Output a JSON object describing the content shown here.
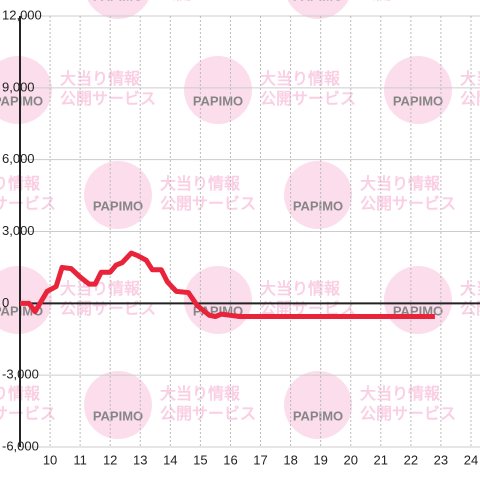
{
  "chart_data": {
    "type": "line",
    "watermark": [
      "大当り情報",
      "公開サービス",
      "PAPIMO"
    ],
    "x": [
      9,
      9.3,
      9.5,
      9.9,
      10.2,
      10.4,
      10.7,
      11.0,
      11.3,
      11.5,
      11.7,
      12.0,
      12.2,
      12.4,
      12.7,
      12.9,
      13.2,
      13.4,
      13.7,
      13.9,
      14.2,
      14.6,
      14.9,
      15.3,
      15.5,
      15.7,
      16.0,
      16.3,
      22.8
    ],
    "series": [
      {
        "color": "#e8233a",
        "values": [
          0,
          0,
          -350,
          500,
          700,
          1500,
          1450,
          1100,
          800,
          800,
          1300,
          1300,
          1600,
          1700,
          2100,
          2000,
          1800,
          1400,
          1400,
          900,
          500,
          450,
          -100,
          -500,
          -550,
          -450,
          -500,
          -550,
          -550
        ]
      }
    ],
    "xlim": [
      9,
      24.3
    ],
    "xticks": [
      10,
      11,
      12,
      13,
      14,
      15,
      16,
      17,
      18,
      19,
      20,
      21,
      22,
      23,
      24
    ],
    "ylim": [
      -6000,
      12000
    ],
    "yticks": [
      {
        "value": -6000,
        "label": "-6,000"
      },
      {
        "value": -3000,
        "label": "-3,000"
      },
      0,
      {
        "value": 3000,
        "label": "3,000"
      },
      {
        "value": 6000,
        "label": "6,000"
      },
      {
        "value": 9000,
        "label": "9,000"
      },
      {
        "value": 12000,
        "label": "12,000"
      }
    ],
    "grid": true
  }
}
